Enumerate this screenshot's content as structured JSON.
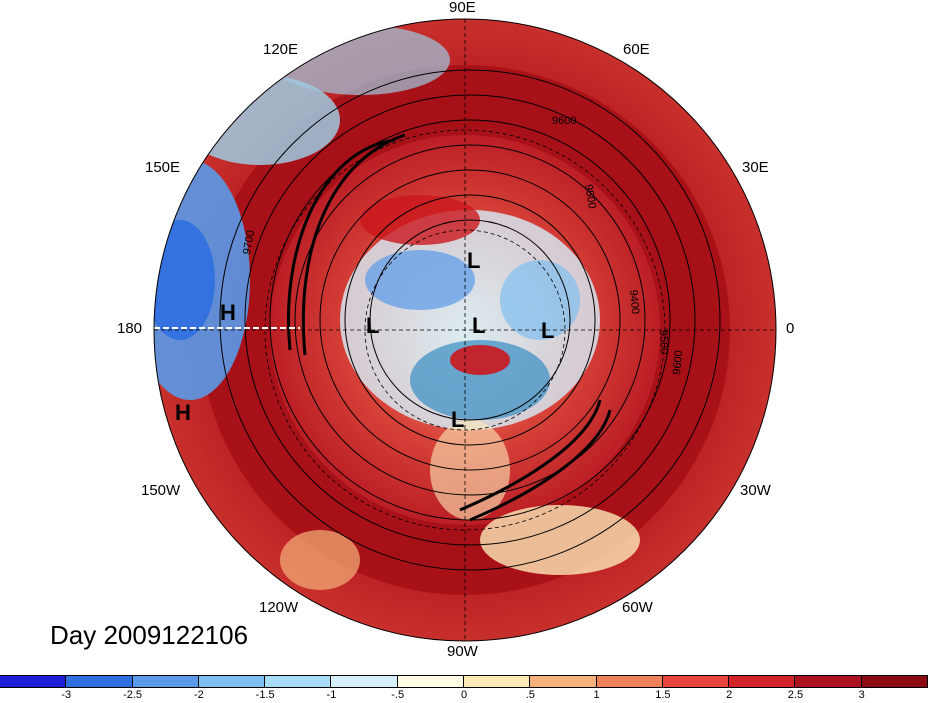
{
  "map": {
    "longitude_labels": [
      {
        "id": "lon-90e",
        "text": "90E"
      },
      {
        "id": "lon-60e",
        "text": "60E"
      },
      {
        "id": "lon-120e",
        "text": "120E"
      },
      {
        "id": "lon-30e",
        "text": "30E"
      },
      {
        "id": "lon-150e",
        "text": "150E"
      },
      {
        "id": "lon-180",
        "text": "180"
      },
      {
        "id": "lon-0",
        "text": "0"
      },
      {
        "id": "lon-150w",
        "text": "150W"
      },
      {
        "id": "lon-30w",
        "text": "30W"
      },
      {
        "id": "lon-120w",
        "text": "120W"
      },
      {
        "id": "lon-60w",
        "text": "60W"
      },
      {
        "id": "lon-90w",
        "text": "90W"
      }
    ],
    "pressure_markers": [
      "H",
      "H",
      "L",
      "L",
      "L",
      "L",
      "L"
    ],
    "contour_labels": [
      "9600",
      "9500",
      "9700",
      "9400",
      "9500",
      "9600"
    ],
    "colors": {
      "deep_red": "#a50f15",
      "red": "#cb181d",
      "light_red": "#ef3b2c",
      "cream": "#fff5d7",
      "light_blue": "#9ecae1",
      "blue": "#4292c6",
      "deep_blue": "#1a3fd6"
    }
  },
  "day_label": "Day 2009122106",
  "colorbar": {
    "colors": [
      "#1d1dd6",
      "#2f6fe0",
      "#5a9ae8",
      "#7fbff0",
      "#a8dcf7",
      "#d6f0fb",
      "#fdfbe3",
      "#fde9b8",
      "#f5b27a",
      "#f08058",
      "#e8453c",
      "#d3232a",
      "#ab1220",
      "#8c0a12"
    ],
    "ticks": [
      "-3",
      "-2.5",
      "-2",
      "-1.5",
      "-1",
      "-.5",
      "0",
      ".5",
      "1",
      "1.5",
      "2",
      "2.5",
      "3"
    ]
  }
}
